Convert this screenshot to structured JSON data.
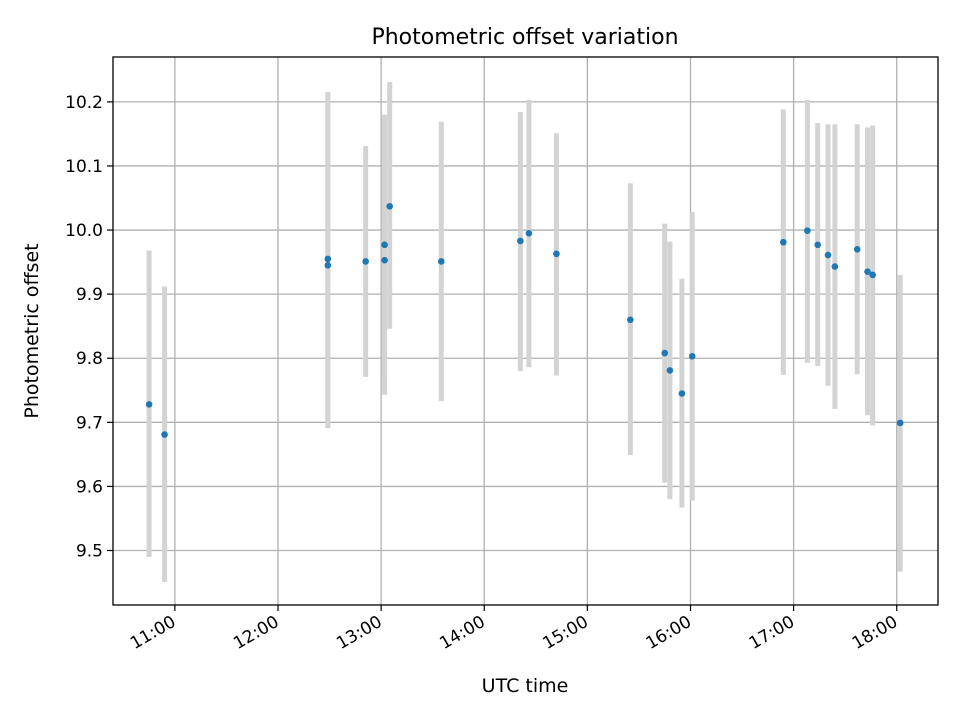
{
  "chart_data": {
    "type": "scatter",
    "title": "Photometric offset variation",
    "xlabel": "UTC time",
    "ylabel": "Photometric offset",
    "x_ticks": [
      "11:00",
      "12:00",
      "13:00",
      "14:00",
      "15:00",
      "16:00",
      "17:00",
      "18:00"
    ],
    "y_ticks": [
      "9.5",
      "9.6",
      "9.7",
      "9.8",
      "9.9",
      "10.0",
      "10.1",
      "10.2"
    ],
    "xlim": [
      "10:24",
      "18:24"
    ],
    "ylim": [
      9.415,
      10.27
    ],
    "grid": true,
    "point_color": "#1f77b4",
    "errorbar_color": "#d3d3d3",
    "series": [
      {
        "points": [
          {
            "x": "10:45",
            "y": 9.728,
            "ylow": 9.49,
            "yhigh": 9.968
          },
          {
            "x": "10:54",
            "y": 9.681,
            "ylow": 9.451,
            "yhigh": 9.912
          },
          {
            "x": "12:29",
            "y": 9.955,
            "ylow": 9.691,
            "yhigh": 10.215
          },
          {
            "x": "12:29",
            "y": 9.945,
            "ylow": 9.691,
            "yhigh": 10.215
          },
          {
            "x": "12:51",
            "y": 9.951,
            "ylow": 9.771,
            "yhigh": 10.131
          },
          {
            "x": "13:02",
            "y": 9.977,
            "ylow": 9.743,
            "yhigh": 10.18
          },
          {
            "x": "13:02",
            "y": 9.953,
            "ylow": 9.773,
            "yhigh": 10.18
          },
          {
            "x": "13:05",
            "y": 10.037,
            "ylow": 9.846,
            "yhigh": 10.231
          },
          {
            "x": "13:35",
            "y": 9.951,
            "ylow": 9.733,
            "yhigh": 10.169
          },
          {
            "x": "14:21",
            "y": 9.983,
            "ylow": 9.78,
            "yhigh": 10.184
          },
          {
            "x": "14:26",
            "y": 9.995,
            "ylow": 9.786,
            "yhigh": 10.203
          },
          {
            "x": "14:42",
            "y": 9.963,
            "ylow": 9.773,
            "yhigh": 10.151
          },
          {
            "x": "15:25",
            "y": 9.86,
            "ylow": 9.649,
            "yhigh": 10.073
          },
          {
            "x": "15:45",
            "y": 9.808,
            "ylow": 9.606,
            "yhigh": 10.01
          },
          {
            "x": "15:48",
            "y": 9.781,
            "ylow": 9.58,
            "yhigh": 9.982
          },
          {
            "x": "15:55",
            "y": 9.745,
            "ylow": 9.567,
            "yhigh": 9.924
          },
          {
            "x": "16:01",
            "y": 9.803,
            "ylow": 9.578,
            "yhigh": 10.028
          },
          {
            "x": "16:54",
            "y": 9.981,
            "ylow": 9.774,
            "yhigh": 10.188
          },
          {
            "x": "17:08",
            "y": 9.999,
            "ylow": 9.793,
            "yhigh": 10.203
          },
          {
            "x": "17:14",
            "y": 9.977,
            "ylow": 9.788,
            "yhigh": 10.167
          },
          {
            "x": "17:20",
            "y": 9.961,
            "ylow": 9.757,
            "yhigh": 10.165
          },
          {
            "x": "17:24",
            "y": 9.943,
            "ylow": 9.721,
            "yhigh": 10.165
          },
          {
            "x": "17:37",
            "y": 9.97,
            "ylow": 9.775,
            "yhigh": 10.165
          },
          {
            "x": "17:43",
            "y": 9.935,
            "ylow": 9.711,
            "yhigh": 10.16
          },
          {
            "x": "17:46",
            "y": 9.93,
            "ylow": 9.695,
            "yhigh": 10.163
          },
          {
            "x": "18:02",
            "y": 9.699,
            "ylow": 9.467,
            "yhigh": 9.93
          }
        ]
      }
    ]
  }
}
